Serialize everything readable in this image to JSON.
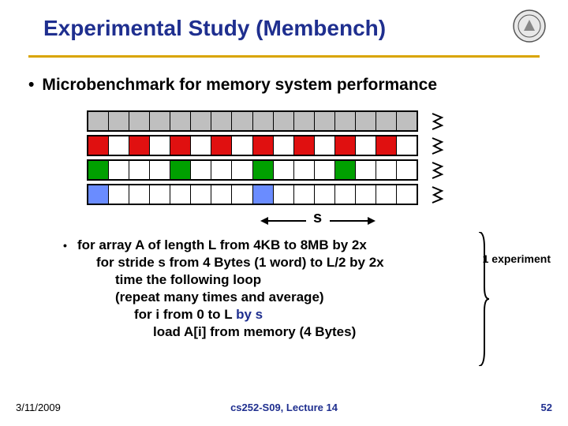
{
  "title": "Experimental Study (Membench)",
  "colors": {
    "title": "#1f2f8f",
    "rule": "#d9a400",
    "gray": "#bfbfbf",
    "red": "#e01010",
    "green": "#00a000",
    "blue": "#6a8cff",
    "white": "#ffffff"
  },
  "bullet": "Microbenchmark for memory system performance",
  "diagram": {
    "cols": 16,
    "rows": [
      {
        "fill_every": 1,
        "color": "gray"
      },
      {
        "fill_every": 2,
        "color": "red"
      },
      {
        "fill_every": 4,
        "color": "green"
      },
      {
        "fill_every": 8,
        "color": "blue"
      }
    ],
    "stride_label": "s"
  },
  "pseudo": {
    "l1a": "for array A of length L from 4KB to 8MB by 2x",
    "l2a": "for stride s from 4 Bytes (1 word) to L/2 by 2x",
    "l3a": "time the following loop",
    "l3b": "(repeat many times and average)",
    "l4a_pre": "for i from 0 to L ",
    "l4a_hl": "by s",
    "l5a": "load A[i] from memory (4 Bytes)"
  },
  "experiment_label": "1 experiment",
  "footer": {
    "date": "3/11/2009",
    "center": "cs252-S09, Lecture 14",
    "page": "52"
  }
}
